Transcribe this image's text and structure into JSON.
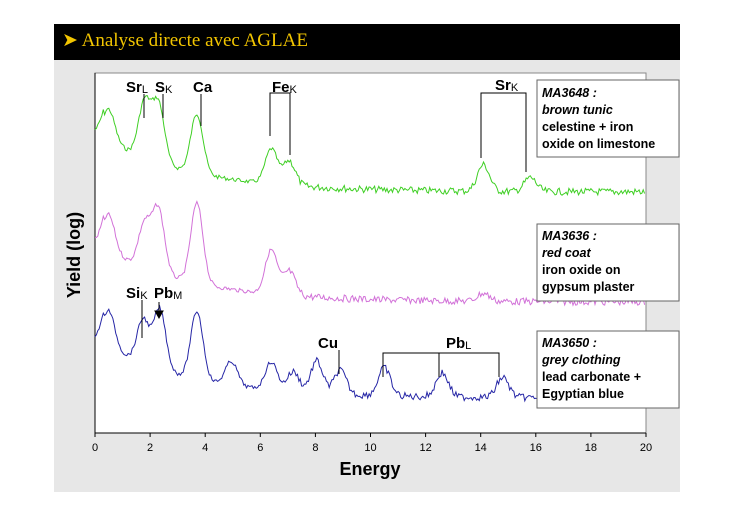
{
  "slide": {
    "title": "Analyse directe avec AGLAE",
    "bullet_icon": "arrow-bullet-icon",
    "title_color": "#f2c500"
  },
  "chart_data": {
    "type": "line",
    "title": "",
    "xlabel": "Energy",
    "ylabel": "Yield (log)",
    "xlim": [
      0,
      20
    ],
    "x_ticks": [
      "0",
      "2",
      "4",
      "6",
      "8",
      "10",
      "12",
      "14",
      "16",
      "18",
      "20"
    ],
    "y_scale": "log",
    "grid": false,
    "legend": "right",
    "series": [
      {
        "id": "ma3648",
        "color": "#3fcf24",
        "annotation": {
          "code": "MA3648 :",
          "desc": "brown tunic",
          "line1": "celestine + iron",
          "line2": "oxide on limestone"
        },
        "peaks": [
          [
            0.5,
            0.45
          ],
          [
            1.8,
            0.8
          ],
          [
            2.3,
            0.85
          ],
          [
            3.7,
            0.85
          ],
          [
            6.4,
            0.5
          ],
          [
            7.05,
            0.35
          ],
          [
            14.1,
            0.38
          ],
          [
            15.8,
            0.2
          ]
        ]
      },
      {
        "id": "ma3636",
        "color": "#d272d8",
        "annotation": {
          "code": "MA3636 :",
          "desc": "red coat",
          "line1": "iron oxide on",
          "line2": "gypsum plaster"
        },
        "peaks": [
          [
            0.5,
            0.45
          ],
          [
            1.8,
            0.55
          ],
          [
            2.3,
            0.8
          ],
          [
            3.7,
            1.0
          ],
          [
            6.4,
            0.55
          ],
          [
            7.05,
            0.3
          ],
          [
            14.1,
            0.1
          ]
        ]
      },
      {
        "id": "ma3650",
        "color": "#2626a6",
        "annotation": {
          "code": "MA3650 :",
          "desc": "grey clothing",
          "line1": "lead carbonate +",
          "line2": "Egyptian blue"
        },
        "peaks": [
          [
            0.5,
            0.45
          ],
          [
            1.75,
            0.55
          ],
          [
            2.35,
            0.75
          ],
          [
            3.7,
            0.85
          ],
          [
            4.95,
            0.3
          ],
          [
            6.4,
            0.35
          ],
          [
            7.2,
            0.25
          ],
          [
            8.05,
            0.4
          ],
          [
            8.9,
            0.3
          ],
          [
            10.5,
            0.35
          ],
          [
            12.6,
            0.3
          ],
          [
            14.8,
            0.25
          ]
        ]
      }
    ],
    "annotations": {
      "top": [
        {
          "main": "Sr",
          "sub": "L",
          "x": 1.8
        },
        {
          "main": "S",
          "sub": "K",
          "x": 2.3
        },
        {
          "main": "Ca",
          "sub": "",
          "x": 3.85
        },
        {
          "main": "Fe",
          "sub": "K",
          "x": 6.6
        },
        {
          "main": "Sr",
          "sub": "K",
          "x": 14.9
        }
      ],
      "bottom": [
        {
          "main": "Si",
          "sub": "K",
          "x": 1.75
        },
        {
          "main": "Pb",
          "sub": "M",
          "x": 2.35
        },
        {
          "main": "Cu",
          "sub": "",
          "x": 8.4
        },
        {
          "main": "Pb",
          "sub": "L",
          "x": 12.6
        }
      ]
    }
  }
}
